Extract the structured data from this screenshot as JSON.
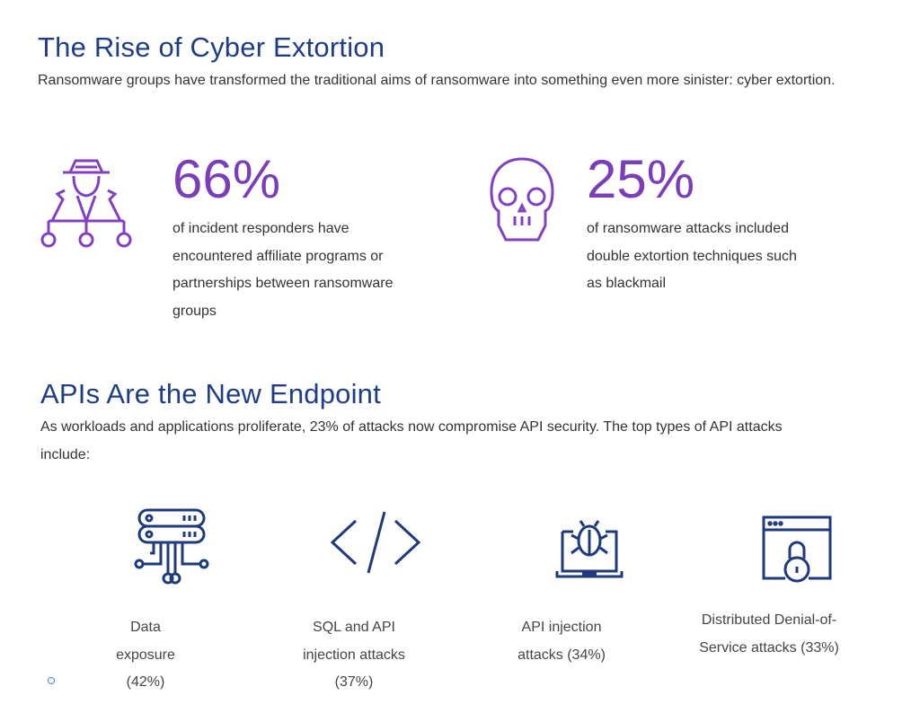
{
  "section1": {
    "title": "The Rise of Cyber Extortion",
    "intro": "Ransomware groups have transformed the traditional aims of ransomware into something even more sinister: cyber extortion.",
    "stats": [
      {
        "value": "66%",
        "text": "of incident responders have encountered affiliate programs or partnerships between ransomware groups",
        "icon": "hacker-network-icon"
      },
      {
        "value": "25%",
        "text": "of ransomware attacks included double extortion techniques such as blackmail",
        "icon": "skull-icon"
      }
    ]
  },
  "section2": {
    "title": "APIs Are the New Endpoint",
    "intro": "As workloads and applications proliferate, 23% of attacks now compromise API security. The top types of API attacks include:",
    "attacks": [
      {
        "label": "Data exposure (42%)",
        "icon": "server-data-icon"
      },
      {
        "label": "SQL and API injection attacks (37%)",
        "icon": "code-icon"
      },
      {
        "label": "API injection attacks (34%)",
        "icon": "bug-laptop-icon"
      },
      {
        "label": "Distributed Denial-of-Service attacks (33%)",
        "icon": "browser-lock-icon"
      }
    ]
  },
  "colors": {
    "heading": "#1f3d86",
    "stat": "#7b3db8",
    "icon_purple": "#8240c0",
    "icon_navy": "#1e3a7b"
  }
}
